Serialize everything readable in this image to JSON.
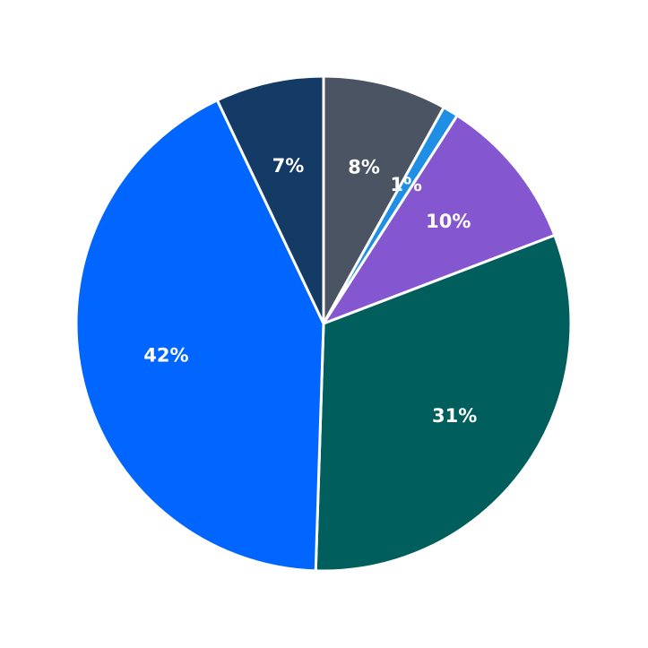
{
  "chart_data": {
    "type": "pie",
    "values": [
      8,
      1,
      10,
      31,
      42,
      7
    ],
    "value_labels": [
      "8%",
      "1%",
      "10%",
      "31%",
      "42%",
      "7%"
    ],
    "colors": [
      "#4a5462",
      "#1f8fe6",
      "#8456cf",
      "#005e5c",
      "#0066ff",
      "#143a66"
    ]
  }
}
